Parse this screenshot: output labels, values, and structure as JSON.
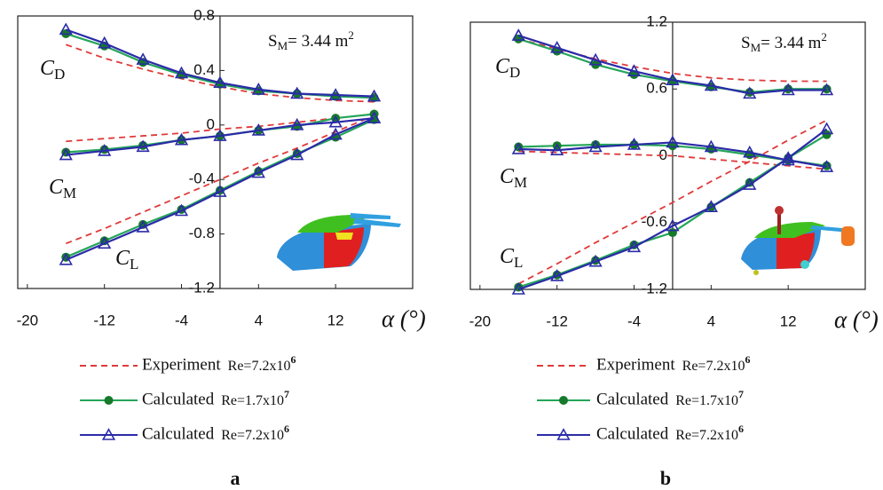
{
  "chart_data": [
    {
      "type": "line",
      "caption": "a",
      "xlabel": "α (°)",
      "x": [
        -16,
        -12,
        -8,
        -4,
        0,
        4,
        8,
        12,
        16
      ],
      "xlim": [
        -21,
        20
      ],
      "xticks": [
        -20,
        -12,
        -4,
        4,
        12
      ],
      "ylim": [
        -1.2,
        0.8
      ],
      "yticks": [
        -1.2,
        -0.8,
        -0.4,
        0,
        0.4,
        0.8
      ],
      "curve_labels": [
        {
          "text": "C",
          "sub": "D"
        },
        {
          "text": "C",
          "sub": "M"
        },
        {
          "text": "C",
          "sub": "L"
        }
      ],
      "area_label": {
        "text": "S",
        "sub": "M",
        "rest": "= 3.44 m",
        "sup": "2"
      },
      "series": [
        {
          "name": "Experiment",
          "re": "Re=7.2x10",
          "re_exp": "6",
          "color": "#e03a3a",
          "dashed": true,
          "marker": "none",
          "values": [
            [
              0.59,
              0.49,
              0.41,
              0.34,
              0.28,
              0.23,
              0.2,
              0.18,
              0.17
            ],
            [
              -0.12,
              -0.1,
              -0.08,
              -0.06,
              -0.03,
              -0.01,
              0.02,
              0.05,
              0.08
            ],
            [
              -0.87,
              -0.76,
              -0.64,
              -0.52,
              -0.4,
              -0.28,
              -0.17,
              -0.05,
              0.07
            ]
          ]
        },
        {
          "name": "Calculated",
          "re": "Re=1.7x10",
          "re_exp": "7",
          "color": "#25a55a",
          "marker_color": "#157a2a",
          "dashed": false,
          "marker": "circle",
          "values": [
            [
              0.67,
              0.58,
              0.46,
              0.37,
              0.3,
              0.25,
              0.23,
              0.21,
              0.2
            ],
            [
              -0.2,
              -0.18,
              -0.15,
              -0.11,
              -0.08,
              -0.04,
              -0.01,
              0.05,
              0.08
            ],
            [
              -0.97,
              -0.85,
              -0.73,
              -0.62,
              -0.48,
              -0.34,
              -0.21,
              -0.09,
              0.04
            ]
          ]
        },
        {
          "name": "Calculated",
          "re": "Re=7.2x10",
          "re_exp": "6",
          "color": "#2b2ba8",
          "dashed": false,
          "marker": "triangle",
          "values": [
            [
              0.7,
              0.6,
              0.48,
              0.38,
              0.31,
              0.26,
              0.23,
              0.22,
              0.21
            ],
            [
              -0.22,
              -0.19,
              -0.16,
              -0.11,
              -0.08,
              -0.04,
              0.0,
              0.02,
              0.05
            ],
            [
              -0.99,
              -0.87,
              -0.75,
              -0.63,
              -0.49,
              -0.35,
              -0.22,
              -0.07,
              0.05
            ]
          ]
        }
      ]
    },
    {
      "type": "line",
      "caption": "b",
      "xlabel": "α (°)",
      "x": [
        -16,
        -12,
        -8,
        -4,
        0,
        4,
        8,
        12,
        16
      ],
      "xlim": [
        -21,
        20
      ],
      "xticks": [
        -20,
        -12,
        -4,
        4,
        12
      ],
      "ylim": [
        -1.2,
        1.2
      ],
      "yticks": [
        -1.2,
        -0.6,
        0,
        0.6,
        1.2
      ],
      "curve_labels": [
        {
          "text": "C",
          "sub": "D"
        },
        {
          "text": "C",
          "sub": "M"
        },
        {
          "text": "C",
          "sub": "L"
        }
      ],
      "area_label": {
        "text": "S",
        "sub": "M",
        "rest": "= 3.44 m",
        "sup": "2"
      },
      "series": [
        {
          "name": "Experiment",
          "re": "Re=7.2x10",
          "re_exp": "6",
          "color": "#e03a3a",
          "dashed": true,
          "marker": "none",
          "values": [
            [
              1.05,
              0.96,
              0.87,
              0.8,
              0.74,
              0.7,
              0.68,
              0.67,
              0.67
            ],
            [
              0.04,
              0.03,
              0.02,
              0.01,
              0.0,
              -0.03,
              -0.06,
              -0.09,
              -0.12
            ],
            [
              -1.15,
              -0.97,
              -0.78,
              -0.6,
              -0.42,
              -0.23,
              -0.05,
              0.14,
              0.32
            ]
          ]
        },
        {
          "name": "Calculated",
          "re": "Re=1.7x10",
          "re_exp": "7",
          "color": "#25a55a",
          "marker_color": "#157a2a",
          "dashed": false,
          "marker": "circle",
          "values": [
            [
              1.05,
              0.94,
              0.82,
              0.73,
              0.67,
              0.62,
              0.57,
              0.6,
              0.6
            ],
            [
              0.08,
              0.09,
              0.1,
              0.1,
              0.09,
              0.06,
              0.01,
              -0.04,
              -0.09
            ],
            [
              -1.18,
              -1.07,
              -0.94,
              -0.8,
              -0.69,
              -0.46,
              -0.24,
              -0.02,
              0.19
            ]
          ]
        },
        {
          "name": "Calculated",
          "re": "Re=7.2x10",
          "re_exp": "6",
          "color": "#2b2ba8",
          "dashed": false,
          "marker": "triangle",
          "values": [
            [
              1.08,
              0.97,
              0.86,
              0.76,
              0.68,
              0.63,
              0.56,
              0.59,
              0.59
            ],
            [
              0.06,
              0.05,
              0.08,
              0.1,
              0.12,
              0.08,
              0.03,
              -0.04,
              -0.1
            ],
            [
              -1.2,
              -1.08,
              -0.95,
              -0.82,
              -0.63,
              -0.46,
              -0.26,
              -0.02,
              0.24
            ]
          ]
        }
      ]
    }
  ]
}
